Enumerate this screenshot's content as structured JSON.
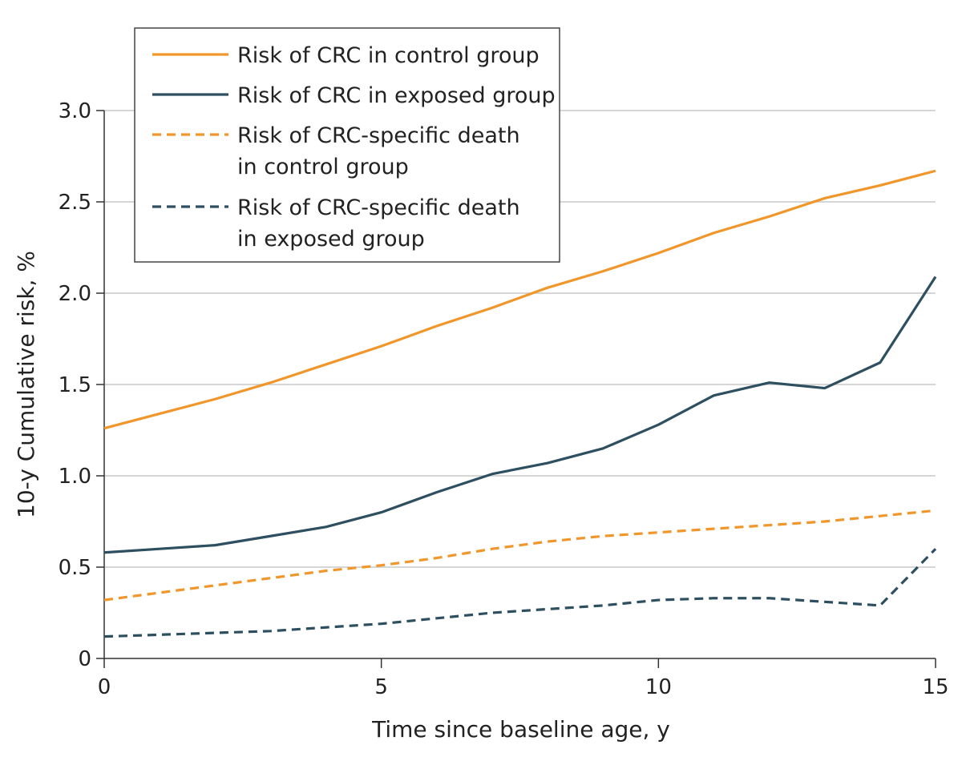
{
  "chart_data": {
    "type": "line",
    "xlabel": "Time since baseline age, y",
    "ylabel": "10-y Cumulative risk, %",
    "xlim": [
      0,
      15
    ],
    "ylim": [
      0,
      3.0
    ],
    "x_ticks": [
      0,
      5,
      10,
      15
    ],
    "x_tick_labels": [
      "0",
      "5",
      "10",
      "15"
    ],
    "y_ticks": [
      0,
      0.5,
      1.0,
      1.5,
      2.0,
      2.5,
      3.0
    ],
    "y_tick_labels": [
      "0",
      "0.5",
      "1.0",
      "1.5",
      "2.0",
      "2.5",
      "3.0"
    ],
    "grid": "horizontal",
    "legend_position": "top-left",
    "x": [
      0,
      1,
      2,
      3,
      4,
      5,
      6,
      7,
      8,
      9,
      10,
      11,
      12,
      13,
      14,
      15
    ],
    "series": [
      {
        "name": "Risk of CRC in control group",
        "label_lines": [
          "Risk of CRC in control group"
        ],
        "color": "#f0962a",
        "dash": "solid",
        "values": [
          1.26,
          1.34,
          1.42,
          1.51,
          1.61,
          1.71,
          1.82,
          1.92,
          2.03,
          2.12,
          2.22,
          2.33,
          2.42,
          2.52,
          2.59,
          2.67
        ]
      },
      {
        "name": "Risk of CRC in exposed group",
        "label_lines": [
          "Risk of CRC in exposed group"
        ],
        "color": "#2d4f5f",
        "dash": "solid",
        "values": [
          0.58,
          0.6,
          0.62,
          0.67,
          0.72,
          0.8,
          0.91,
          1.01,
          1.07,
          1.15,
          1.28,
          1.44,
          1.51,
          1.48,
          1.62,
          2.09
        ]
      },
      {
        "name": "Risk of CRC-specific death in control group",
        "label_lines": [
          "Risk of CRC-specific death",
          "in control group"
        ],
        "color": "#f0962a",
        "dash": "dashed",
        "values": [
          0.32,
          0.36,
          0.4,
          0.44,
          0.48,
          0.51,
          0.55,
          0.6,
          0.64,
          0.67,
          0.69,
          0.71,
          0.73,
          0.75,
          0.78,
          0.81
        ]
      },
      {
        "name": "Risk of CRC-specific death in exposed group",
        "label_lines": [
          "Risk of CRC-specific death",
          "in exposed group"
        ],
        "color": "#2d4f5f",
        "dash": "dashed",
        "values": [
          0.12,
          0.13,
          0.14,
          0.15,
          0.17,
          0.19,
          0.22,
          0.25,
          0.27,
          0.29,
          0.32,
          0.33,
          0.33,
          0.31,
          0.29,
          0.6
        ]
      }
    ]
  }
}
